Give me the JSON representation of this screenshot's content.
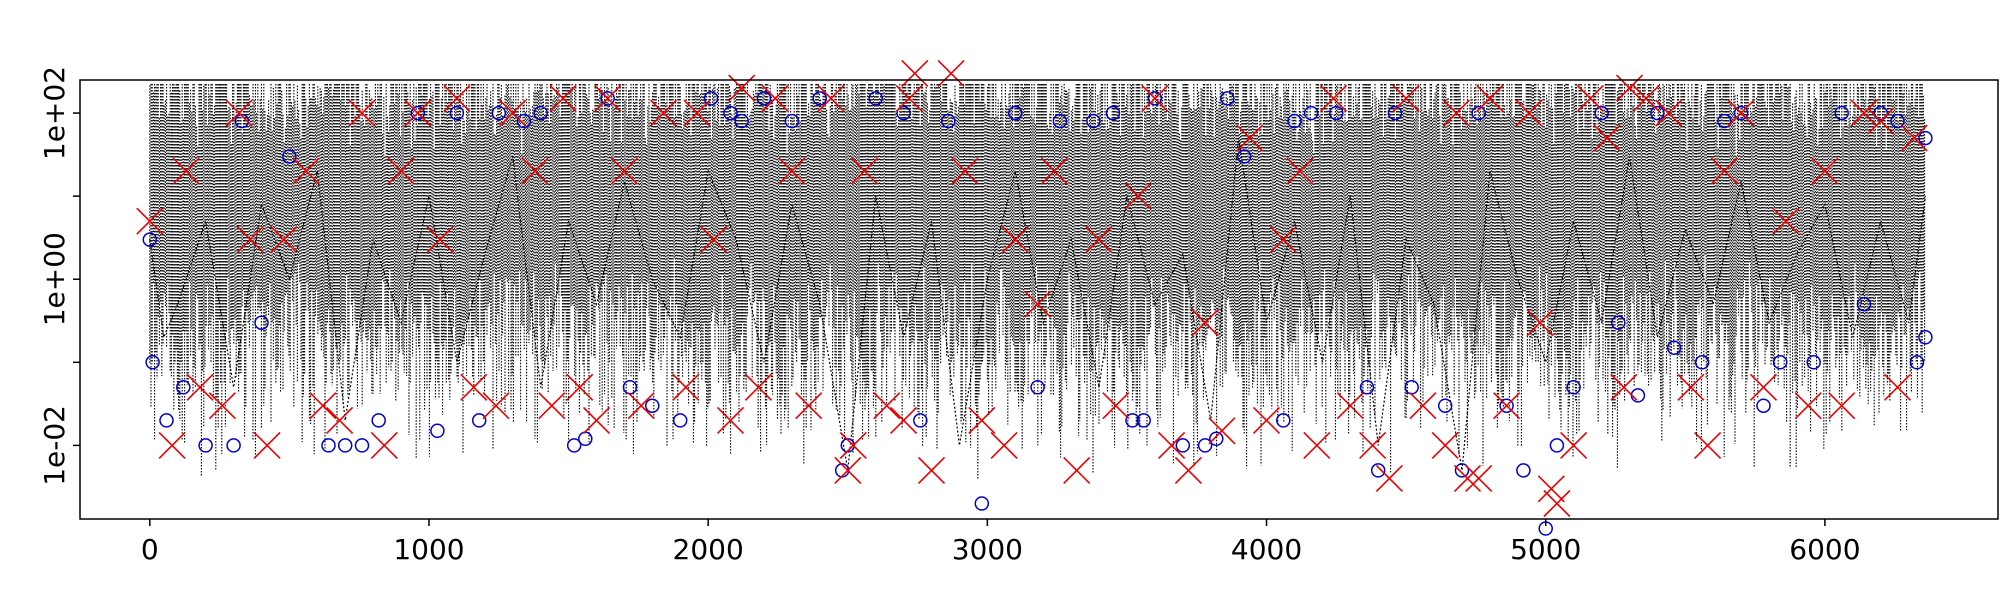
{
  "chart_data": {
    "type": "scatter",
    "title": "",
    "xlabel": "",
    "ylabel": "",
    "x_ticks": [
      0,
      1000,
      2000,
      3000,
      4000,
      5000,
      6000
    ],
    "x_tick_labels": [
      "0",
      "1000",
      "2000",
      "3000",
      "4000",
      "5000",
      "6000"
    ],
    "y_scale": "log",
    "y_ticks": [
      0.01,
      1,
      100
    ],
    "y_tick_labels": [
      "1e-02",
      "1e+00",
      "1e+02"
    ],
    "y_minor_ticks": [
      0.1,
      10
    ],
    "xlim": [
      -250,
      6620
    ],
    "ylim": [
      0.0013,
      250
    ],
    "grid": false,
    "legend": "none",
    "series": [
      {
        "style": "dotted-line",
        "color": "#000000",
        "x": [
          0,
          50,
          100,
          200,
          300,
          400,
          500,
          600,
          700,
          800,
          900,
          1000,
          1100,
          1200,
          1300,
          1400,
          1500,
          1600,
          1700,
          1800,
          1900,
          2000,
          2100,
          2200,
          2300,
          2400,
          2500,
          2600,
          2700,
          2800,
          2900,
          3000,
          3100,
          3200,
          3300,
          3400,
          3500,
          3600,
          3700,
          3800,
          3900,
          4000,
          4100,
          4200,
          4300,
          4400,
          4500,
          4600,
          4700,
          4800,
          4900,
          5000,
          5100,
          5200,
          5300,
          5400,
          5500,
          5600,
          5700,
          5800,
          5900,
          6000,
          6100,
          6200,
          6300,
          6360
        ],
        "y": [
          3,
          0.2,
          0.5,
          5,
          0.05,
          8,
          1,
          20,
          0.02,
          3,
          0.3,
          10,
          0.1,
          2,
          30,
          0.05,
          5,
          0.5,
          15,
          1,
          0.2,
          20,
          3,
          0.1,
          8,
          0.5,
          0.005,
          10,
          0.2,
          5,
          0.01,
          1,
          20,
          0.3,
          3,
          0.05,
          10,
          0.5,
          2,
          0.02,
          50,
          0.3,
          5,
          0.1,
          10,
          0.01,
          3,
          0.5,
          0.005,
          20,
          1,
          0.1,
          5,
          0.3,
          30,
          0.2,
          4,
          0.5,
          15,
          0.3,
          2,
          8,
          0.2,
          5,
          0.3,
          10
        ]
      },
      {
        "style": "marker",
        "marker": "circle",
        "color": "#0000cc",
        "x": [
          0,
          10,
          60,
          120,
          200,
          300,
          330,
          400,
          500,
          640,
          700,
          760,
          820,
          960,
          1030,
          1100,
          1180,
          1250,
          1340,
          1400,
          1520,
          1560,
          1640,
          1720,
          1800,
          1900,
          2010,
          2080,
          2120,
          2200,
          2300,
          2400,
          2480,
          2500,
          2600,
          2700,
          2760,
          2860,
          2980,
          3100,
          3180,
          3260,
          3380,
          3450,
          3520,
          3560,
          3600,
          3700,
          3780,
          3820,
          3860,
          3920,
          4060,
          4100,
          4160,
          4250,
          4360,
          4400,
          4460,
          4520,
          4640,
          4700,
          4760,
          4860,
          4920,
          5000,
          5040,
          5100,
          5200,
          5260,
          5330,
          5400,
          5460,
          5560,
          5640,
          5700,
          5780,
          5840,
          5960,
          6060,
          6140,
          6200,
          6260,
          6330,
          6360,
          6360
        ],
        "y": [
          3,
          0.1,
          0.02,
          0.05,
          0.01,
          0.01,
          80,
          0.3,
          30,
          0.01,
          0.01,
          0.01,
          0.02,
          100,
          0.015,
          100,
          0.02,
          100,
          80,
          100,
          0.01,
          0.012,
          150,
          0.05,
          0.03,
          0.02,
          150,
          100,
          80,
          150,
          80,
          150,
          0.005,
          0.01,
          150,
          100,
          0.02,
          80,
          0.002,
          100,
          0.05,
          80,
          80,
          100,
          0.02,
          0.02,
          150,
          0.01,
          0.01,
          0.012,
          150,
          30,
          0.02,
          80,
          100,
          100,
          0.05,
          0.005,
          100,
          0.05,
          0.03,
          0.005,
          100,
          0.03,
          0.005,
          0.001,
          0.01,
          0.05,
          100,
          0.3,
          0.04,
          100,
          0.15,
          0.1,
          80,
          100,
          0.03,
          0.1,
          0.1,
          100,
          0.5,
          100,
          80,
          0.1,
          0.2,
          50
        ]
      },
      {
        "style": "marker",
        "marker": "x",
        "color": "#ee0000",
        "x": [
          0,
          80,
          130,
          180,
          260,
          320,
          360,
          420,
          480,
          560,
          620,
          680,
          760,
          840,
          900,
          960,
          1040,
          1100,
          1160,
          1240,
          1300,
          1380,
          1440,
          1480,
          1540,
          1600,
          1640,
          1700,
          1760,
          1840,
          1920,
          1960,
          2020,
          2080,
          2120,
          2180,
          2240,
          2300,
          2360,
          2440,
          2500,
          2520,
          2560,
          2640,
          2700,
          2720,
          2740,
          2800,
          2870,
          2920,
          2980,
          3060,
          3100,
          3180,
          3240,
          3320,
          3400,
          3460,
          3540,
          3600,
          3660,
          3720,
          3780,
          3840,
          3940,
          4000,
          4060,
          4120,
          4180,
          4240,
          4300,
          4380,
          4440,
          4500,
          4560,
          4640,
          4680,
          4720,
          4760,
          4800,
          4860,
          4940,
          4980,
          5020,
          5040,
          5100,
          5160,
          5220,
          5280,
          5300,
          5360,
          5440,
          5520,
          5580,
          5640,
          5700,
          5780,
          5860,
          5940,
          6000,
          6060,
          6140,
          6200,
          6260,
          6320
        ],
        "y": [
          5,
          0.01,
          20,
          0.05,
          0.03,
          100,
          3,
          0.01,
          3,
          20,
          0.03,
          0.02,
          100,
          0.01,
          20,
          100,
          3,
          150,
          0.05,
          0.03,
          100,
          20,
          0.03,
          150,
          0.05,
          0.02,
          150,
          20,
          0.03,
          100,
          0.05,
          100,
          3,
          0.02,
          200,
          0.05,
          150,
          20,
          0.03,
          150,
          0.005,
          0.01,
          20,
          0.03,
          0.02,
          150,
          300,
          0.005,
          300,
          20,
          0.02,
          0.01,
          3,
          0.5,
          20,
          0.005,
          3,
          0.03,
          10,
          150,
          0.01,
          0.005,
          0.3,
          0.015,
          50,
          0.02,
          3,
          20,
          0.01,
          150,
          0.03,
          0.01,
          0.004,
          150,
          0.03,
          0.01,
          100,
          0.004,
          0.004,
          150,
          0.03,
          100,
          0.3,
          0.003,
          0.002,
          0.01,
          150,
          50,
          0.05,
          200,
          150,
          100,
          0.05,
          0.01,
          20,
          100,
          0.05,
          5,
          0.03,
          20,
          0.03,
          100,
          80,
          0.05,
          50
        ]
      }
    ]
  }
}
